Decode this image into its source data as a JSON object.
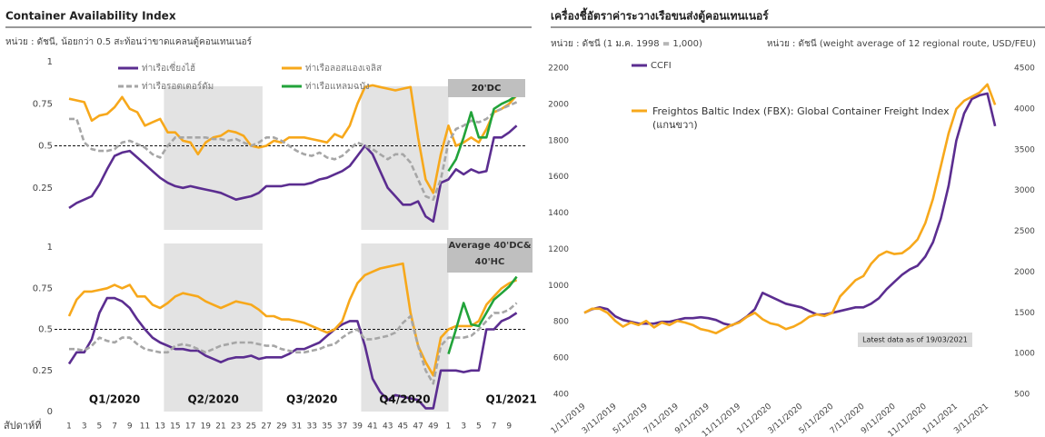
{
  "chart_data": [
    {
      "type": "line",
      "title": "Container Availability Index",
      "subtitle": "หน่วย : ดัชนี, น้อยกว่า 0.5 สะท้อนว่าขาดแคลนตู้คอนเทนเนอร์",
      "tag": "20'DC",
      "ylim": [
        0,
        1
      ],
      "yticks": [
        0.25,
        0.5,
        0.75,
        1
      ],
      "ref_line": 0.5,
      "series": [
        {
          "name": "ท่าเรือเซี่ยงไฮ้",
          "color": "#5b2d90",
          "values": [
            0.13,
            0.16,
            0.18,
            0.2,
            0.27,
            0.36,
            0.44,
            0.46,
            0.47,
            0.43,
            0.39,
            0.35,
            0.31,
            0.28,
            0.26,
            0.25,
            0.26,
            0.25,
            0.24,
            0.23,
            0.22,
            0.2,
            0.18,
            0.19,
            0.2,
            0.22,
            0.26,
            0.26,
            0.26,
            0.27,
            0.27,
            0.27,
            0.28,
            0.3,
            0.31,
            0.33,
            0.35,
            0.38,
            0.44,
            0.5,
            0.45,
            0.35,
            0.25,
            0.2,
            0.15,
            0.15,
            0.17,
            0.08,
            0.05,
            0.28,
            0.3,
            0.36,
            0.33,
            0.36,
            0.34,
            0.35,
            0.55,
            0.55,
            0.58,
            0.62
          ]
        },
        {
          "name": "ท่าเรือลอสแองเจลิส",
          "color": "#f7a81b",
          "values": [
            0.78,
            0.77,
            0.76,
            0.65,
            0.68,
            0.69,
            0.73,
            0.79,
            0.72,
            0.7,
            0.62,
            0.64,
            0.66,
            0.58,
            0.58,
            0.53,
            0.52,
            0.45,
            0.52,
            0.55,
            0.56,
            0.59,
            0.58,
            0.56,
            0.5,
            0.49,
            0.5,
            0.53,
            0.52,
            0.55,
            0.55,
            0.55,
            0.54,
            0.53,
            0.52,
            0.57,
            0.55,
            0.62,
            0.75,
            0.85,
            0.86,
            0.85,
            0.84,
            0.83,
            0.84,
            0.85,
            0.55,
            0.3,
            0.22,
            0.45,
            0.62,
            0.5,
            0.52,
            0.55,
            0.52,
            0.6,
            0.7,
            0.72,
            0.75,
            0.8
          ]
        },
        {
          "name": "ท่าเรือรอตเตอร์ดัม",
          "color": "#a6a6a6",
          "dashed": true,
          "values": [
            0.66,
            0.66,
            0.52,
            0.48,
            0.47,
            0.47,
            0.48,
            0.52,
            0.53,
            0.51,
            0.49,
            0.45,
            0.43,
            0.5,
            0.55,
            0.55,
            0.55,
            0.55,
            0.55,
            0.54,
            0.54,
            0.53,
            0.54,
            0.52,
            0.5,
            0.52,
            0.55,
            0.55,
            0.53,
            0.5,
            0.47,
            0.45,
            0.44,
            0.46,
            0.43,
            0.42,
            0.44,
            0.48,
            0.52,
            0.5,
            0.48,
            0.45,
            0.42,
            0.45,
            0.45,
            0.4,
            0.3,
            0.2,
            0.18,
            0.3,
            0.52,
            0.6,
            0.62,
            0.65,
            0.64,
            0.66,
            0.7,
            0.72,
            0.74,
            0.76
          ]
        },
        {
          "name": "ท่าเรือแหลมฉบัง",
          "color": "#22a33a",
          "values": [
            null,
            null,
            null,
            null,
            null,
            null,
            null,
            null,
            null,
            null,
            null,
            null,
            null,
            null,
            null,
            null,
            null,
            null,
            null,
            null,
            null,
            null,
            null,
            null,
            null,
            null,
            null,
            null,
            null,
            null,
            null,
            null,
            null,
            null,
            null,
            null,
            null,
            null,
            null,
            null,
            null,
            null,
            null,
            null,
            null,
            null,
            null,
            null,
            null,
            null,
            0.35,
            0.42,
            0.55,
            0.7,
            0.55,
            0.55,
            0.72,
            0.75,
            0.77,
            0.8
          ]
        }
      ]
    },
    {
      "type": "line",
      "tag": "Average 40'DC& 40'HC",
      "xlabel": "สัปดาห์ที่",
      "categories": [
        1,
        null,
        3,
        null,
        5,
        null,
        7,
        null,
        9,
        null,
        11,
        null,
        13,
        null,
        15,
        null,
        17,
        null,
        19,
        null,
        21,
        null,
        23,
        null,
        25,
        null,
        27,
        null,
        29,
        null,
        31,
        null,
        33,
        null,
        35,
        null,
        37,
        null,
        39,
        null,
        41,
        null,
        43,
        null,
        45,
        null,
        47,
        null,
        49,
        null,
        1,
        null,
        3,
        null,
        5,
        null,
        7,
        null,
        9,
        null
      ],
      "quarters": [
        {
          "label": "Q1/2020",
          "shaded": false
        },
        {
          "label": "Q2/2020",
          "shaded": true
        },
        {
          "label": "Q3/2020",
          "shaded": false
        },
        {
          "label": "Q4/2020",
          "shaded": true
        },
        {
          "label": "Q1/2021",
          "shaded": false
        }
      ],
      "ylim": [
        0,
        1
      ],
      "yticks": [
        0,
        0.25,
        0.5,
        0.75,
        1
      ],
      "ref_line": 0.5,
      "series": [
        {
          "color": "#5b2d90",
          "values": [
            0.29,
            0.36,
            0.36,
            0.44,
            0.6,
            0.69,
            0.69,
            0.67,
            0.63,
            0.56,
            0.5,
            0.45,
            0.42,
            0.4,
            0.38,
            0.38,
            0.37,
            0.37,
            0.34,
            0.32,
            0.3,
            0.32,
            0.33,
            0.33,
            0.34,
            0.32,
            0.33,
            0.33,
            0.33,
            0.35,
            0.38,
            0.38,
            0.4,
            0.42,
            0.46,
            0.5,
            0.53,
            0.55,
            0.55,
            0.4,
            0.2,
            0.12,
            0.07,
            0.1,
            0.09,
            0.08,
            0.07,
            0.02,
            0.02,
            0.25,
            0.25,
            0.25,
            0.24,
            0.25,
            0.25,
            0.5,
            0.5,
            0.55,
            0.57,
            0.6
          ]
        },
        {
          "color": "#f7a81b",
          "values": [
            0.58,
            0.68,
            0.73,
            0.73,
            0.74,
            0.75,
            0.77,
            0.75,
            0.77,
            0.7,
            0.7,
            0.65,
            0.63,
            0.66,
            0.7,
            0.72,
            0.71,
            0.7,
            0.67,
            0.65,
            0.63,
            0.65,
            0.67,
            0.66,
            0.65,
            0.62,
            0.58,
            0.58,
            0.56,
            0.56,
            0.55,
            0.54,
            0.52,
            0.5,
            0.48,
            0.5,
            0.55,
            0.68,
            0.78,
            0.83,
            0.85,
            0.87,
            0.88,
            0.89,
            0.9,
            0.6,
            0.4,
            0.3,
            0.22,
            0.45,
            0.5,
            0.52,
            0.52,
            0.52,
            0.55,
            0.65,
            0.7,
            0.75,
            0.78,
            0.8
          ]
        },
        {
          "color": "#a6a6a6",
          "dashed": true,
          "values": [
            0.38,
            0.38,
            0.37,
            0.4,
            0.45,
            0.43,
            0.42,
            0.45,
            0.45,
            0.41,
            0.38,
            0.37,
            0.36,
            0.36,
            0.4,
            0.41,
            0.4,
            0.38,
            0.36,
            0.38,
            0.4,
            0.41,
            0.42,
            0.42,
            0.42,
            0.41,
            0.4,
            0.4,
            0.38,
            0.37,
            0.36,
            0.36,
            0.37,
            0.38,
            0.4,
            0.41,
            0.45,
            0.48,
            0.5,
            0.44,
            0.44,
            0.45,
            0.46,
            0.48,
            0.54,
            0.58,
            0.4,
            0.25,
            0.17,
            0.4,
            0.45,
            0.45,
            0.45,
            0.46,
            0.5,
            0.55,
            0.6,
            0.6,
            0.62,
            0.66
          ]
        },
        {
          "color": "#22a33a",
          "values": [
            null,
            null,
            null,
            null,
            null,
            null,
            null,
            null,
            null,
            null,
            null,
            null,
            null,
            null,
            null,
            null,
            null,
            null,
            null,
            null,
            null,
            null,
            null,
            null,
            null,
            null,
            null,
            null,
            null,
            null,
            null,
            null,
            null,
            null,
            null,
            null,
            null,
            null,
            null,
            null,
            null,
            null,
            null,
            null,
            null,
            null,
            null,
            null,
            null,
            null,
            0.35,
            0.5,
            0.66,
            0.53,
            0.52,
            0.6,
            0.68,
            0.72,
            0.76,
            0.82
          ]
        }
      ]
    },
    {
      "type": "line",
      "title": "เครื่องชี้อัตราค่าระวางเรือขนส่งตู้คอนเทนเนอร์",
      "ylabel": "หน่วย : ดัชนี (1 ม.ค. 1998 = 1,000)",
      "y2label": "หน่วย : ดัชนี (weight average of 12 regional route, USD/FEU)",
      "annotation": "Latest data as of 19/03/2021",
      "categories": [
        "1/11/2019",
        null,
        null,
        null,
        "3/11/2019",
        null,
        null,
        null,
        "5/11/2019",
        null,
        null,
        null,
        "7/11/2019",
        null,
        null,
        null,
        "9/11/2019",
        null,
        null,
        null,
        "11/11/2019",
        null,
        null,
        null,
        "1/11/2020",
        null,
        null,
        null,
        "3/11/2020",
        null,
        null,
        null,
        "5/11/2020",
        null,
        null,
        null,
        "7/11/2020",
        null,
        null,
        null,
        "9/11/2020",
        null,
        null,
        null,
        "11/11/2020",
        null,
        null,
        null,
        "1/11/2021",
        null,
        null,
        null,
        "3/11/2021",
        null
      ],
      "ylim": [
        400,
        2200
      ],
      "yticks": [
        400,
        600,
        800,
        1000,
        1200,
        1400,
        1600,
        1800,
        2000,
        2200
      ],
      "y2lim": [
        500,
        4500
      ],
      "y2ticks": [
        500,
        1000,
        1500,
        2000,
        2500,
        3000,
        3500,
        4000,
        4500
      ],
      "series": [
        {
          "name": "CCFI",
          "color": "#5b2d90",
          "values": [
            850,
            870,
            880,
            870,
            830,
            810,
            800,
            790,
            790,
            790,
            800,
            800,
            810,
            820,
            820,
            825,
            820,
            810,
            790,
            780,
            800,
            830,
            870,
            960,
            940,
            920,
            900,
            890,
            880,
            860,
            840,
            840,
            850,
            860,
            870,
            880,
            880,
            900,
            930,
            980,
            1020,
            1060,
            1090,
            1110,
            1160,
            1240,
            1370,
            1550,
            1800,
            1950,
            2030,
            2050,
            2060,
            1880
          ]
        },
        {
          "name": "Freightos Baltic Index (FBX): Global Container Freight Index (แกนขวา)",
          "color": "#f7a81b",
          "axis": "y2",
          "values": [
            1500,
            1550,
            1550,
            1500,
            1400,
            1330,
            1380,
            1350,
            1400,
            1320,
            1380,
            1350,
            1400,
            1380,
            1350,
            1300,
            1280,
            1250,
            1300,
            1350,
            1380,
            1450,
            1500,
            1420,
            1370,
            1350,
            1300,
            1330,
            1380,
            1450,
            1480,
            1460,
            1500,
            1700,
            1800,
            1900,
            1950,
            2100,
            2200,
            2250,
            2220,
            2230,
            2300,
            2400,
            2600,
            2900,
            3300,
            3700,
            4000,
            4100,
            4150,
            4200,
            4300,
            4050
          ]
        }
      ]
    }
  ]
}
